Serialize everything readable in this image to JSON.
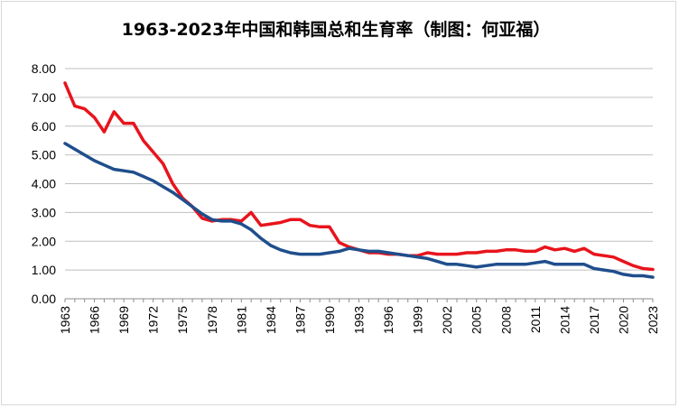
{
  "chart_data": {
    "type": "line",
    "title": "1963-2023年中国和韩国总和生育率（制图：何亚福）",
    "xlabel": "",
    "ylabel": "",
    "ylim": [
      0,
      8
    ],
    "yticks": [
      "0.00",
      "1.00",
      "2.00",
      "3.00",
      "4.00",
      "5.00",
      "6.00",
      "7.00",
      "8.00"
    ],
    "xticks": [
      "1963",
      "1966",
      "1969",
      "1972",
      "1975",
      "1978",
      "1981",
      "1984",
      "1987",
      "1990",
      "1993",
      "1996",
      "1999",
      "2002",
      "2005",
      "2008",
      "2011",
      "2014",
      "2017",
      "2020",
      "2023"
    ],
    "grid": true,
    "legend": "none",
    "x": [
      1963,
      1964,
      1965,
      1966,
      1967,
      1968,
      1969,
      1970,
      1971,
      1972,
      1973,
      1974,
      1975,
      1976,
      1977,
      1978,
      1979,
      1980,
      1981,
      1982,
      1983,
      1984,
      1985,
      1986,
      1987,
      1988,
      1989,
      1990,
      1991,
      1992,
      1993,
      1994,
      1995,
      1996,
      1997,
      1998,
      1999,
      2000,
      2001,
      2002,
      2003,
      2004,
      2005,
      2006,
      2007,
      2008,
      2009,
      2010,
      2011,
      2012,
      2013,
      2014,
      2015,
      2016,
      2017,
      2018,
      2019,
      2020,
      2021,
      2022,
      2023
    ],
    "series": [
      {
        "color": "#e8141c",
        "values": [
          7.5,
          6.7,
          6.6,
          6.3,
          5.8,
          6.5,
          6.1,
          6.1,
          5.5,
          5.1,
          4.7,
          4.0,
          3.5,
          3.2,
          2.8,
          2.7,
          2.75,
          2.75,
          2.7,
          3.0,
          2.55,
          2.6,
          2.65,
          2.75,
          2.75,
          2.55,
          2.5,
          2.5,
          1.95,
          1.8,
          1.7,
          1.6,
          1.6,
          1.55,
          1.55,
          1.5,
          1.5,
          1.6,
          1.55,
          1.55,
          1.55,
          1.6,
          1.6,
          1.65,
          1.65,
          1.7,
          1.7,
          1.65,
          1.65,
          1.8,
          1.7,
          1.75,
          1.65,
          1.75,
          1.55,
          1.5,
          1.45,
          1.3,
          1.15,
          1.05,
          1.02
        ]
      },
      {
        "color": "#1f4e8c",
        "values": [
          5.4,
          5.2,
          5.0,
          4.8,
          4.65,
          4.5,
          4.45,
          4.4,
          4.25,
          4.1,
          3.9,
          3.7,
          3.45,
          3.2,
          2.95,
          2.75,
          2.7,
          2.7,
          2.6,
          2.4,
          2.1,
          1.85,
          1.7,
          1.6,
          1.55,
          1.55,
          1.55,
          1.6,
          1.65,
          1.75,
          1.7,
          1.65,
          1.65,
          1.6,
          1.55,
          1.5,
          1.45,
          1.4,
          1.3,
          1.2,
          1.2,
          1.15,
          1.1,
          1.15,
          1.2,
          1.2,
          1.2,
          1.2,
          1.25,
          1.3,
          1.2,
          1.2,
          1.2,
          1.2,
          1.05,
          1.0,
          0.95,
          0.85,
          0.8,
          0.8,
          0.75
        ]
      }
    ]
  }
}
